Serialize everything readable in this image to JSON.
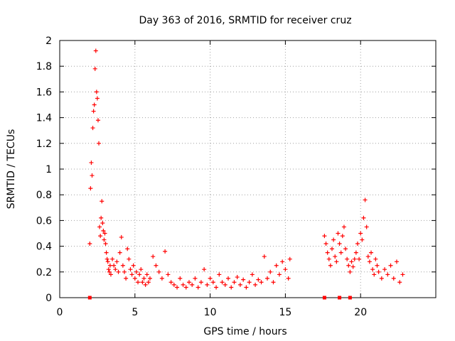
{
  "chart_data": {
    "type": "scatter",
    "title": "Day 363 of 2016, SRMTID for receiver cruz",
    "xlabel": "GPS time / hours",
    "ylabel": "SRMTID / TECUs",
    "xlim": [
      0,
      25
    ],
    "ylim": [
      0,
      2
    ],
    "xticks": [
      0,
      5,
      10,
      15,
      20
    ],
    "xtick_labels": [
      "0",
      "5",
      "10",
      "15",
      "20"
    ],
    "yticks": [
      0,
      0.2,
      0.4,
      0.6,
      0.8,
      1.0,
      1.2,
      1.4,
      1.6,
      1.8,
      2.0
    ],
    "ytick_labels": [
      "0",
      "0.2",
      "0.4",
      "0.6",
      "0.8",
      "1",
      "1.2",
      "1.4",
      "1.6",
      "1.8",
      "2"
    ],
    "grid": true,
    "marker": "+",
    "color": "#ff0000",
    "series": [
      {
        "name": "SRMTID",
        "x": [
          2.0,
          2.05,
          2.1,
          2.15,
          2.2,
          2.25,
          2.3,
          2.35,
          2.4,
          2.45,
          2.5,
          2.55,
          2.6,
          2.65,
          2.7,
          2.75,
          2.8,
          2.85,
          2.9,
          2.95,
          3.0,
          3.05,
          3.1,
          3.15,
          3.2,
          3.25,
          3.3,
          3.35,
          3.4,
          3.5,
          3.6,
          3.7,
          3.8,
          3.9,
          4.0,
          4.1,
          4.2,
          4.3,
          4.4,
          4.5,
          4.6,
          4.7,
          4.8,
          4.9,
          5.0,
          5.1,
          5.2,
          5.3,
          5.4,
          5.5,
          5.6,
          5.7,
          5.8,
          5.9,
          6.0,
          6.2,
          6.4,
          6.6,
          6.8,
          7.0,
          7.2,
          7.4,
          7.6,
          7.8,
          8.0,
          8.2,
          8.4,
          8.6,
          8.8,
          9.0,
          9.2,
          9.4,
          9.6,
          9.8,
          10.0,
          10.2,
          10.4,
          10.6,
          10.8,
          11.0,
          11.2,
          11.4,
          11.6,
          11.8,
          12.0,
          12.2,
          12.4,
          12.6,
          12.8,
          13.0,
          13.2,
          13.4,
          13.6,
          13.8,
          14.0,
          14.2,
          14.4,
          14.6,
          14.8,
          15.0,
          15.2,
          15.3,
          17.6,
          17.7,
          17.8,
          17.9,
          18.0,
          18.1,
          18.2,
          18.3,
          18.4,
          18.5,
          18.6,
          18.7,
          18.8,
          18.9,
          19.0,
          19.1,
          19.2,
          19.3,
          19.4,
          19.5,
          19.6,
          19.7,
          19.8,
          19.9,
          20.0,
          20.1,
          20.2,
          20.3,
          20.4,
          20.5,
          20.6,
          20.7,
          20.8,
          20.9,
          21.0,
          21.1,
          21.2,
          21.4,
          21.6,
          21.8,
          22.0,
          22.2,
          22.4,
          22.6,
          22.8
        ],
        "y": [
          0.42,
          0.85,
          1.05,
          0.95,
          1.32,
          1.45,
          1.5,
          1.78,
          1.92,
          1.6,
          1.55,
          1.38,
          1.2,
          0.55,
          0.48,
          0.62,
          0.75,
          0.58,
          0.52,
          0.45,
          0.5,
          0.42,
          0.35,
          0.3,
          0.28,
          0.22,
          0.2,
          0.25,
          0.18,
          0.3,
          0.25,
          0.22,
          0.28,
          0.2,
          0.35,
          0.47,
          0.25,
          0.2,
          0.15,
          0.38,
          0.3,
          0.22,
          0.18,
          0.25,
          0.15,
          0.2,
          0.12,
          0.18,
          0.22,
          0.12,
          0.15,
          0.1,
          0.18,
          0.12,
          0.15,
          0.32,
          0.25,
          0.2,
          0.15,
          0.36,
          0.18,
          0.12,
          0.1,
          0.08,
          0.15,
          0.1,
          0.08,
          0.12,
          0.1,
          0.15,
          0.08,
          0.12,
          0.22,
          0.1,
          0.15,
          0.12,
          0.08,
          0.18,
          0.12,
          0.1,
          0.15,
          0.08,
          0.12,
          0.16,
          0.1,
          0.14,
          0.08,
          0.12,
          0.18,
          0.1,
          0.14,
          0.12,
          0.32,
          0.15,
          0.2,
          0.12,
          0.25,
          0.18,
          0.28,
          0.22,
          0.15,
          0.3,
          0.48,
          0.42,
          0.35,
          0.3,
          0.25,
          0.38,
          0.45,
          0.32,
          0.28,
          0.5,
          0.42,
          0.35,
          0.48,
          0.55,
          0.38,
          0.3,
          0.25,
          0.2,
          0.28,
          0.24,
          0.3,
          0.35,
          0.42,
          0.3,
          0.5,
          0.45,
          0.62,
          0.76,
          0.55,
          0.32,
          0.28,
          0.35,
          0.22,
          0.18,
          0.3,
          0.25,
          0.2,
          0.15,
          0.22,
          0.18,
          0.25,
          0.15,
          0.28,
          0.12,
          0.18
        ]
      }
    ],
    "gap_markers": {
      "y": 0,
      "x": [
        2.0,
        17.6,
        18.6,
        19.3
      ]
    }
  }
}
